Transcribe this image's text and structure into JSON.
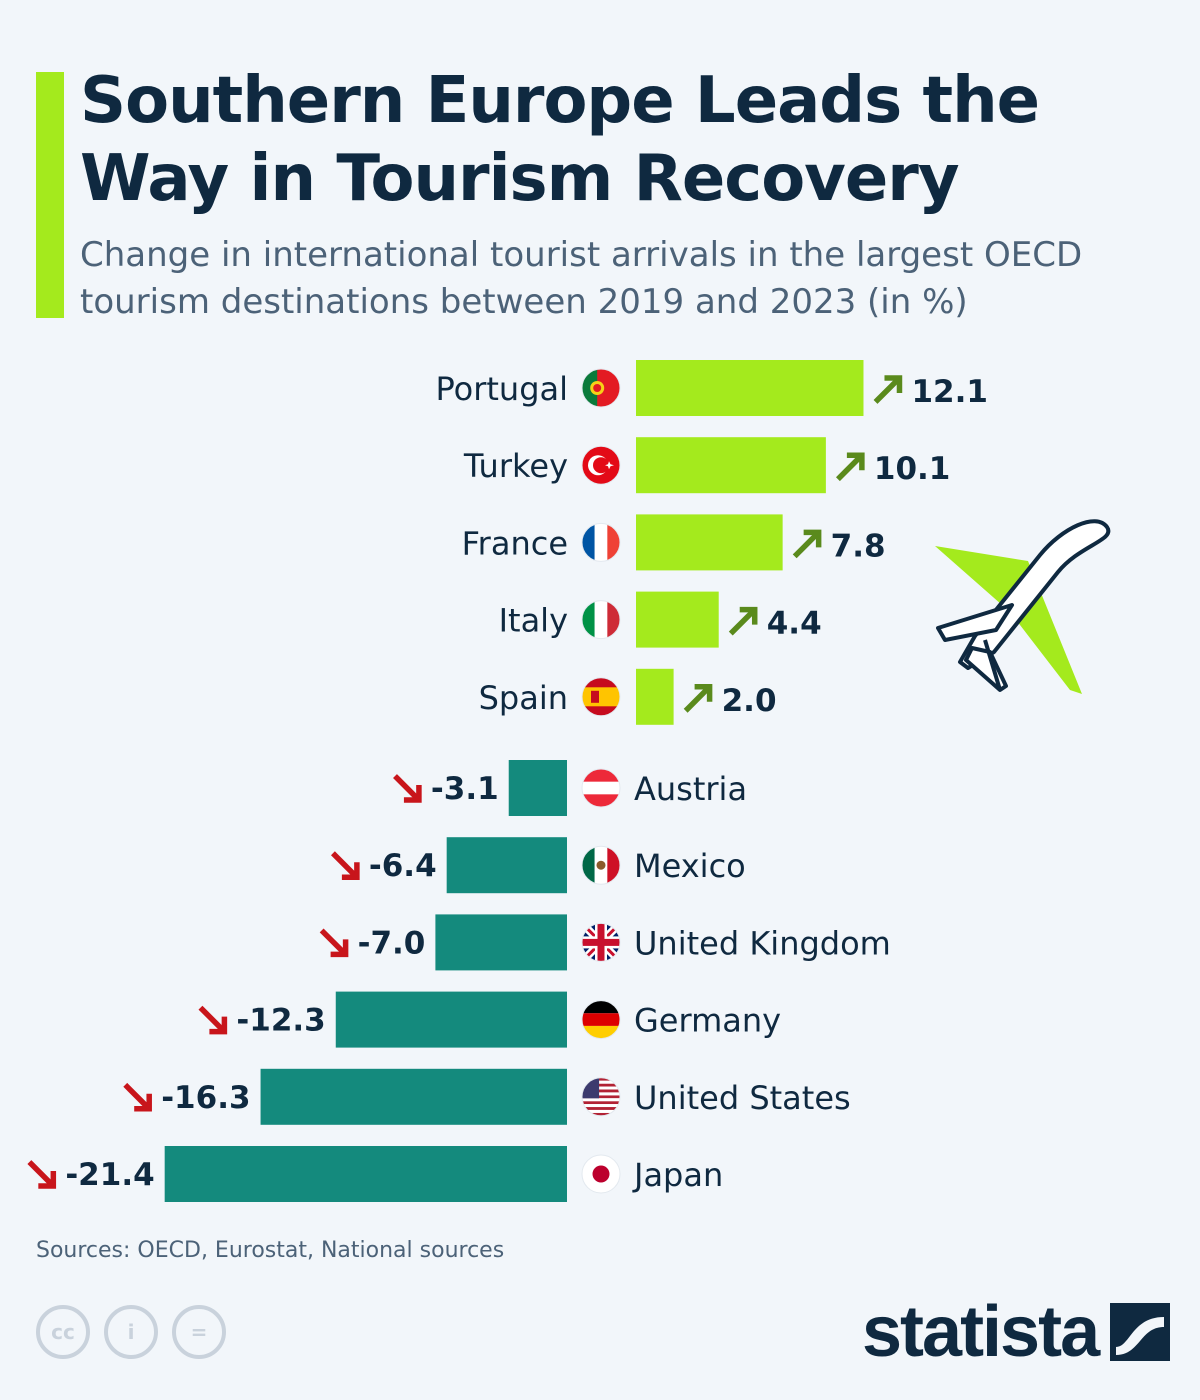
{
  "header": {
    "title": "Southern Europe Leads the Way in Tourism Recovery",
    "subtitle": "Change in international tourist arrivals in the largest OECD tourism destinations between 2019 and 2023 (in %)"
  },
  "colors": {
    "positive": "#a4ea1d",
    "negative": "#148a7d",
    "arrow_up": "#5a8a1c",
    "arrow_down": "#c8151b",
    "text": "#0f2940"
  },
  "chart_data": {
    "type": "bar",
    "orientation": "horizontal",
    "title": "Southern Europe Leads the Way in Tourism Recovery",
    "subtitle": "Change in international tourist arrivals in the largest OECD tourism destinations between 2019 and 2023 (in %)",
    "unit": "%",
    "categories": [
      "Portugal",
      "Turkey",
      "France",
      "Italy",
      "Spain",
      "Austria",
      "Mexico",
      "United Kingdom",
      "Germany",
      "United States",
      "Japan"
    ],
    "values": [
      12.1,
      10.1,
      7.8,
      4.4,
      2.0,
      -3.1,
      -6.4,
      -7.0,
      -12.3,
      -16.3,
      -21.4
    ],
    "labels": [
      "12.1",
      "10.1",
      "7.8",
      "4.4",
      "2.0",
      "-3.1",
      "-6.4",
      "-7.0",
      "-12.3",
      "-16.3",
      "-21.4"
    ],
    "flags": [
      "portugal-flag",
      "turkey-flag",
      "france-flag",
      "italy-flag",
      "spain-flag",
      "austria-flag",
      "mexico-flag",
      "united-kingdom-flag",
      "germany-flag",
      "united-states-flag",
      "japan-flag"
    ],
    "grid": false,
    "legend": "none"
  },
  "footer": {
    "source": "Sources: OECD, Eurostat, National sources",
    "cc_icons": [
      "cc",
      "i",
      "="
    ],
    "brand": "statista"
  }
}
